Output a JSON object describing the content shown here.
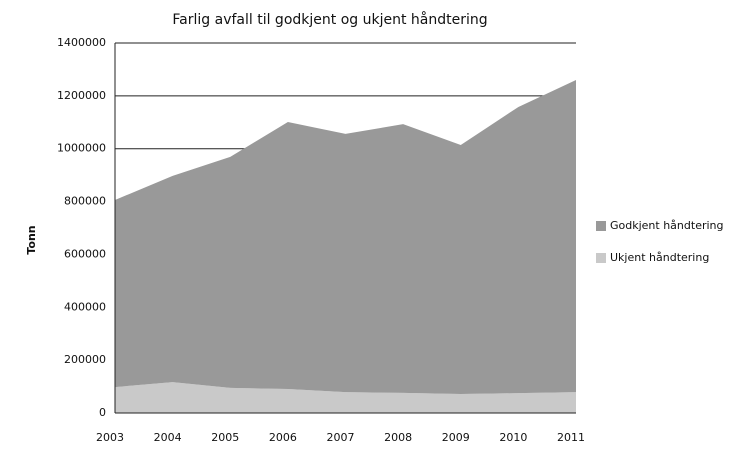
{
  "chart_data": {
    "type": "stacked-area",
    "title": "Farlig avfall til godkjent og ukjent håndtering",
    "y_label": "Tonn",
    "categories": [
      "2003",
      "2004",
      "2005",
      "2006",
      "2007",
      "2008",
      "2009",
      "2010",
      "2011"
    ],
    "series": [
      {
        "name": "Godkjent håndtering",
        "color": "#999999",
        "values": [
          708000,
          780000,
          874000,
          1010000,
          977000,
          1017000,
          942000,
          1083000,
          1181000
        ]
      },
      {
        "name": "Ukjent håndtering",
        "color": "#c9c9c9",
        "values": [
          98000,
          117000,
          95000,
          91000,
          79000,
          76000,
          72000,
          75000,
          79000
        ]
      }
    ],
    "ylim": [
      0,
      1400000
    ],
    "yticks": [
      0,
      200000,
      400000,
      600000,
      800000,
      1000000,
      1200000,
      1400000
    ],
    "grid": true,
    "legend": "right"
  }
}
